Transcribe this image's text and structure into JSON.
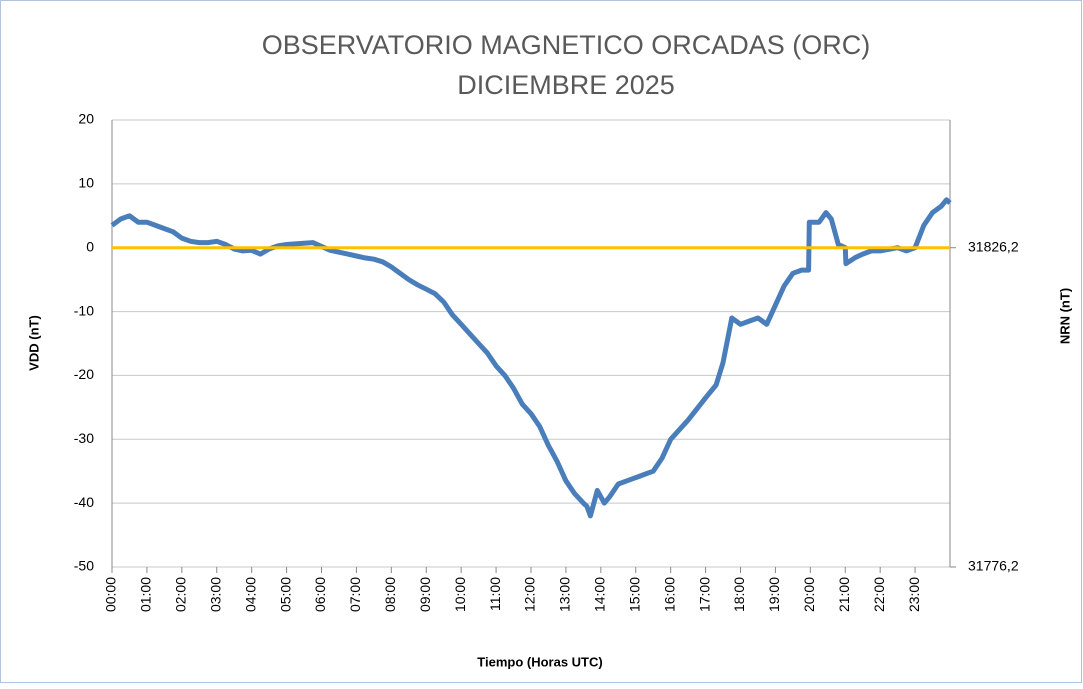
{
  "chart_data": {
    "type": "line",
    "title": [
      "OBSERVATORIO MAGNETICO ORCADAS (ORC)",
      "DICIEMBRE 2025"
    ],
    "y_label": "VDD (nT)",
    "y2_label": "NRN (nT)",
    "x_label": "Tiempo (Horas UTC)",
    "xlim": [
      0,
      24
    ],
    "xticks": [
      {
        "value": 0,
        "label": "00:00"
      },
      {
        "value": 1,
        "label": "01:00"
      },
      {
        "value": 2,
        "label": "02:00"
      },
      {
        "value": 3,
        "label": "03:00"
      },
      {
        "value": 4,
        "label": "04:00"
      },
      {
        "value": 5,
        "label": "05:00"
      },
      {
        "value": 6,
        "label": "06:00"
      },
      {
        "value": 7,
        "label": "07:00"
      },
      {
        "value": 8,
        "label": "08:00"
      },
      {
        "value": 9,
        "label": "09:00"
      },
      {
        "value": 10,
        "label": "10:00"
      },
      {
        "value": 11,
        "label": "11:00"
      },
      {
        "value": 12,
        "label": "12:00"
      },
      {
        "value": 13,
        "label": "13:00"
      },
      {
        "value": 14,
        "label": "14:00"
      },
      {
        "value": 15,
        "label": "15:00"
      },
      {
        "value": 16,
        "label": "16:00"
      },
      {
        "value": 17,
        "label": "17:00"
      },
      {
        "value": 18,
        "label": "18:00"
      },
      {
        "value": 19,
        "label": "19:00"
      },
      {
        "value": 20,
        "label": "20:00"
      },
      {
        "value": 21,
        "label": "21:00"
      },
      {
        "value": 22,
        "label": "22:00"
      },
      {
        "value": 23,
        "label": "23:00"
      }
    ],
    "ylim": [
      -50,
      20
    ],
    "yticks": [
      -50,
      -40,
      -30,
      -20,
      -10,
      0,
      10,
      20
    ],
    "y2lim": [
      31776.2,
      31846.2
    ],
    "y2ticks": [
      {
        "value": 31776.2,
        "label": "31776,2"
      },
      {
        "value": 31826.2,
        "label": "31826,2"
      }
    ],
    "grid": true,
    "color": "#4a7ebb",
    "reference_line": {
      "value": 0,
      "color": "#ffc000"
    },
    "x": [
      0,
      0.25,
      0.5,
      0.75,
      1,
      1.25,
      1.5,
      1.75,
      2,
      2.25,
      2.5,
      2.75,
      3,
      3.25,
      3.5,
      3.75,
      4,
      4.25,
      4.5,
      4.75,
      5,
      5.25,
      5.5,
      5.75,
      6,
      6.25,
      6.5,
      6.75,
      7,
      7.25,
      7.5,
      7.75,
      8,
      8.25,
      8.5,
      8.75,
      9,
      9.25,
      9.5,
      9.75,
      10,
      10.25,
      10.5,
      10.75,
      11,
      11.25,
      11.5,
      11.75,
      12,
      12.25,
      12.5,
      12.75,
      13,
      13.25,
      13.5,
      13.6,
      13.7,
      13.9,
      14.1,
      14.25,
      14.5,
      14.75,
      15,
      15.25,
      15.5,
      15.75,
      16,
      16.5,
      17,
      17.3,
      17.5,
      17.75,
      18,
      18.25,
      18.5,
      18.75,
      19,
      19.25,
      19.5,
      19.75,
      19.95,
      19.97,
      20.25,
      20.45,
      20.6,
      20.8,
      21,
      21.02,
      21.3,
      21.5,
      21.75,
      22,
      22.5,
      22.75,
      23,
      23.25,
      23.5,
      23.75,
      23.9,
      24
    ],
    "values": [
      3.5,
      4.5,
      5,
      4,
      4,
      3.5,
      3,
      2.5,
      1.5,
      1,
      0.8,
      0.8,
      1,
      0.5,
      -0.2,
      -0.5,
      -0.4,
      -1,
      -0.2,
      0.3,
      0.5,
      0.6,
      0.7,
      0.8,
      0.2,
      -0.4,
      -0.7,
      -1,
      -1.3,
      -1.6,
      -1.8,
      -2.2,
      -3,
      -4,
      -5,
      -5.8,
      -6.5,
      -7.2,
      -8.5,
      -10.5,
      -12,
      -13.5,
      -15,
      -16.5,
      -18.5,
      -20,
      -22,
      -24.5,
      -26,
      -28,
      -31,
      -33.5,
      -36.5,
      -38.5,
      -40,
      -40.5,
      -42,
      -38,
      -40,
      -39,
      -37,
      -36.5,
      -36,
      -35.5,
      -35,
      -33,
      -30,
      -27,
      -23.5,
      -21.5,
      -18,
      -11,
      -12,
      -11.5,
      -11,
      -12,
      -9,
      -6,
      -4,
      -3.5,
      -3.5,
      4,
      4,
      5.5,
      4.5,
      0.5,
      0,
      -2.5,
      -1.5,
      -1,
      -0.5,
      -0.5,
      0,
      -0.5,
      0,
      3.5,
      5.5,
      6.5,
      7.5,
      7
    ]
  }
}
